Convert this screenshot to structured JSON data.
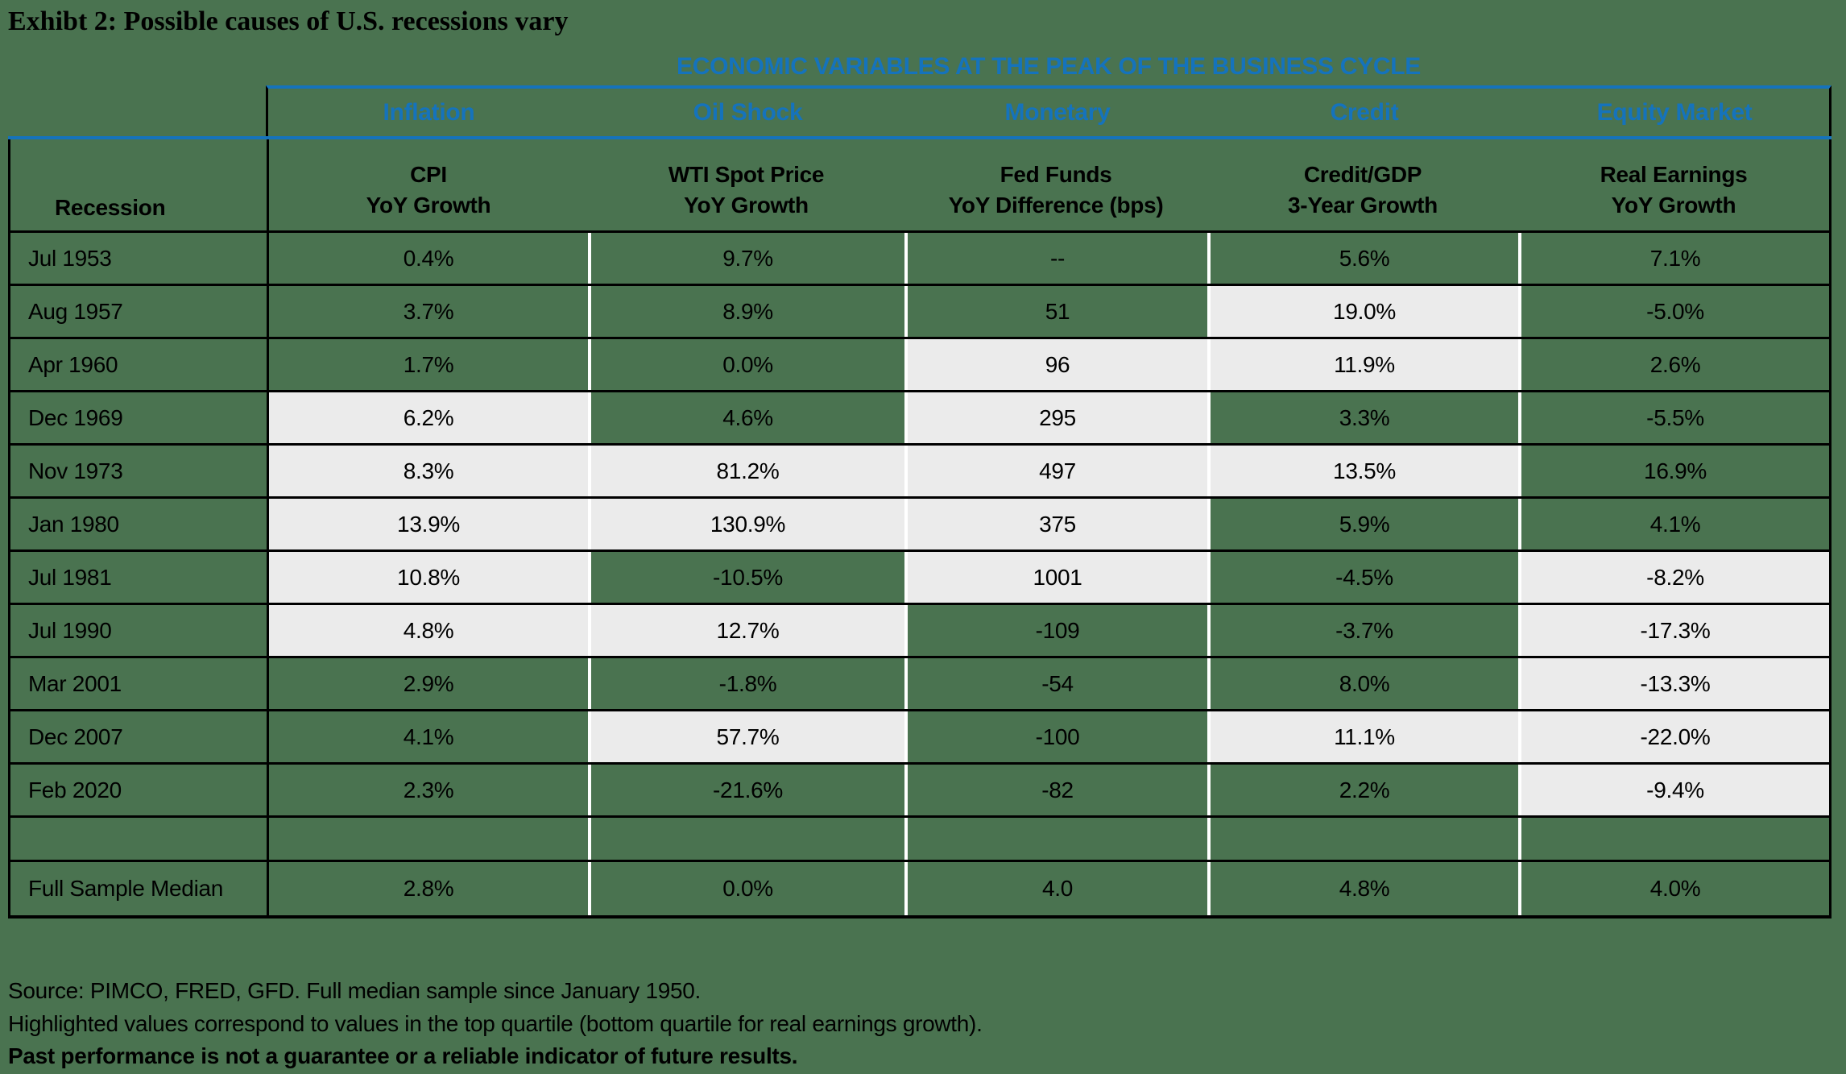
{
  "title": "Exhibt 2: Possible causes of U.S. recessions vary",
  "chart_data": {
    "type": "table",
    "title": "Exhibt 2: Possible causes of U.S. recessions vary",
    "banner": "ECONOMIC VARIABLES AT THE PEAK OF THE BUSINESS CYCLE",
    "row_header": "Recession",
    "category_headers": [
      "Inflation",
      "Oil Shock",
      "Monetary",
      "Credit",
      "Equity Market"
    ],
    "column_headers": [
      {
        "top": "CPI",
        "bottom": "YoY Growth"
      },
      {
        "top": "WTI Spot Price",
        "bottom": "YoY Growth"
      },
      {
        "top": "Fed Funds",
        "bottom": "YoY Difference (bps)"
      },
      {
        "top": "Credit/GDP",
        "bottom": "3-Year Growth"
      },
      {
        "top": "Real Earnings",
        "bottom": "YoY Growth"
      }
    ],
    "rows": [
      {
        "label": "Jul 1953",
        "values": [
          "0.4%",
          "9.7%",
          "--",
          "5.6%",
          "7.1%"
        ],
        "highlight": [
          false,
          false,
          false,
          false,
          false
        ]
      },
      {
        "label": "Aug 1957",
        "values": [
          "3.7%",
          "8.9%",
          "51",
          "19.0%",
          "-5.0%"
        ],
        "highlight": [
          false,
          false,
          false,
          true,
          false
        ]
      },
      {
        "label": "Apr 1960",
        "values": [
          "1.7%",
          "0.0%",
          "96",
          "11.9%",
          "2.6%"
        ],
        "highlight": [
          false,
          false,
          true,
          true,
          false
        ]
      },
      {
        "label": "Dec 1969",
        "values": [
          "6.2%",
          "4.6%",
          "295",
          "3.3%",
          "-5.5%"
        ],
        "highlight": [
          true,
          false,
          true,
          false,
          false
        ]
      },
      {
        "label": "Nov 1973",
        "values": [
          "8.3%",
          "81.2%",
          "497",
          "13.5%",
          "16.9%"
        ],
        "highlight": [
          true,
          true,
          true,
          true,
          false
        ]
      },
      {
        "label": "Jan 1980",
        "values": [
          "13.9%",
          "130.9%",
          "375",
          "5.9%",
          "4.1%"
        ],
        "highlight": [
          true,
          true,
          true,
          false,
          false
        ]
      },
      {
        "label": "Jul 1981",
        "values": [
          "10.8%",
          "-10.5%",
          "1001",
          "-4.5%",
          "-8.2%"
        ],
        "highlight": [
          true,
          false,
          true,
          false,
          true
        ]
      },
      {
        "label": "Jul 1990",
        "values": [
          "4.8%",
          "12.7%",
          "-109",
          "-3.7%",
          "-17.3%"
        ],
        "highlight": [
          true,
          true,
          false,
          false,
          true
        ]
      },
      {
        "label": "Mar 2001",
        "values": [
          "2.9%",
          "-1.8%",
          "-54",
          "8.0%",
          "-13.3%"
        ],
        "highlight": [
          false,
          false,
          false,
          false,
          true
        ]
      },
      {
        "label": "Dec 2007",
        "values": [
          "4.1%",
          "57.7%",
          "-100",
          "11.1%",
          "-22.0%"
        ],
        "highlight": [
          false,
          true,
          false,
          true,
          true
        ]
      },
      {
        "label": "Feb 2020",
        "values": [
          "2.3%",
          "-21.6%",
          "-82",
          "2.2%",
          "-9.4%"
        ],
        "highlight": [
          false,
          false,
          false,
          false,
          true
        ]
      }
    ],
    "median_row": {
      "label": "Full Sample Median",
      "values": [
        "2.8%",
        "0.0%",
        "4.0",
        "4.8%",
        "4.0%"
      ]
    }
  },
  "footer": {
    "source": "Source: PIMCO, FRED, GFD. Full median sample since January 1950.",
    "highlight_note": "Highlighted values correspond to values in the top quartile (bottom quartile for real earnings growth).",
    "disclaimer": "Past performance is not a guarantee or a reliable indicator of future results."
  },
  "colors": {
    "background": "#4A7350",
    "highlight": "#EBEBEB",
    "accent_blue": "#1573BC",
    "border_black": "#000000",
    "divider_white": "#FFFFFF",
    "text": "#000000"
  }
}
